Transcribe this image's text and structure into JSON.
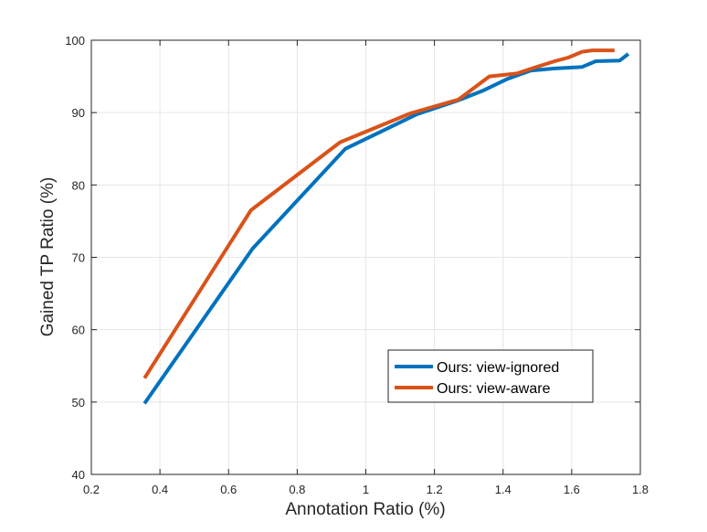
{
  "chart_data": {
    "type": "line",
    "title": "",
    "xlabel": "Annotation Ratio (%)",
    "ylabel": "Gained TP Ratio (%)",
    "xlim": [
      0.2,
      1.8
    ],
    "ylim": [
      40,
      100
    ],
    "xticks": [
      0.2,
      0.4,
      0.6,
      0.8,
      1,
      1.2,
      1.4,
      1.6,
      1.8
    ],
    "xtick_labels": [
      "0.2",
      "0.4",
      "0.6",
      "0.8",
      "1",
      "1.2",
      "1.4",
      "1.6",
      "1.8"
    ],
    "yticks": [
      40,
      50,
      60,
      70,
      80,
      90,
      100
    ],
    "ytick_labels": [
      "40",
      "50",
      "60",
      "70",
      "80",
      "90",
      "100"
    ],
    "grid": true,
    "legend_position": "lower-right",
    "series": [
      {
        "name": "Ours: view-ignored",
        "color": "#0072BD",
        "x": [
          0.355,
          0.67,
          0.94,
          1.15,
          1.27,
          1.34,
          1.41,
          1.48,
          1.55,
          1.63,
          1.67,
          1.74,
          1.765
        ],
        "y": [
          49.8,
          71.2,
          85.0,
          89.8,
          91.7,
          93.0,
          94.6,
          95.8,
          96.1,
          96.3,
          97.1,
          97.2,
          98.1
        ]
      },
      {
        "name": "Ours: view-aware",
        "color": "#D95319",
        "x": [
          0.355,
          0.665,
          0.925,
          1.13,
          1.27,
          1.36,
          1.44,
          1.49,
          1.55,
          1.59,
          1.63,
          1.66,
          1.725
        ],
        "y": [
          53.3,
          76.5,
          85.9,
          89.9,
          91.8,
          95.0,
          95.4,
          96.2,
          97.1,
          97.6,
          98.4,
          98.6,
          98.6
        ]
      }
    ]
  }
}
